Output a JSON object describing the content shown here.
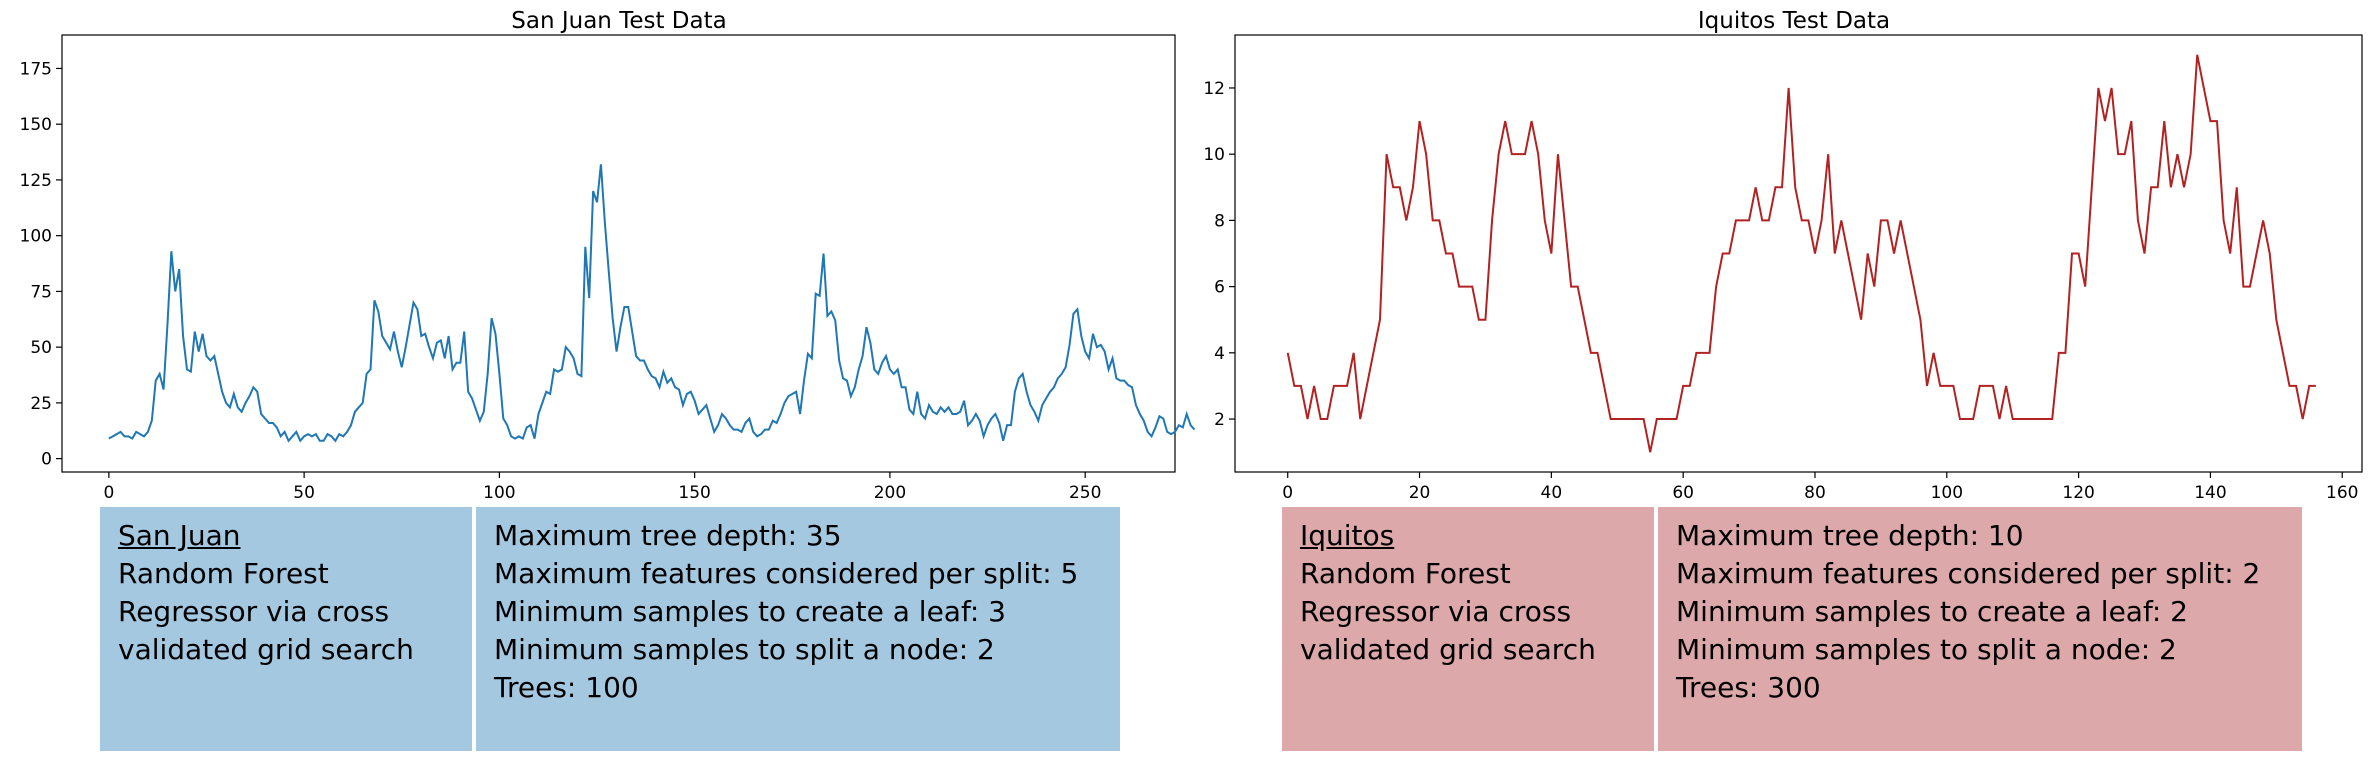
{
  "chart_data": [
    {
      "type": "line",
      "title": "San Juan Test Data",
      "xlabel": "",
      "ylabel": "",
      "xlim": [
        -12,
        273
      ],
      "ylim": [
        -6,
        190
      ],
      "xticks": [
        0,
        50,
        100,
        150,
        200,
        250
      ],
      "yticks": [
        0,
        25,
        50,
        75,
        100,
        125,
        150,
        175
      ],
      "grid": false,
      "color": "#1f77b4",
      "series": [
        {
          "values": [
            9,
            10,
            11,
            12,
            10,
            10,
            9,
            12,
            11,
            10,
            12,
            17,
            35,
            38,
            31,
            60,
            93,
            75,
            85,
            55,
            40,
            39,
            57,
            48,
            56,
            46,
            44,
            46,
            38,
            30,
            25,
            23,
            29,
            23,
            21,
            25,
            28,
            32,
            30,
            20,
            18,
            16,
            16,
            14,
            10,
            12,
            8,
            10,
            12,
            8,
            10,
            11,
            10,
            11,
            8,
            8,
            11,
            10,
            8,
            11,
            10,
            12,
            15,
            21,
            23,
            25,
            38,
            40,
            71,
            66,
            55,
            52,
            49,
            57,
            48,
            41,
            50,
            60,
            70,
            67,
            55,
            56,
            50,
            45,
            52,
            53,
            45,
            55,
            40,
            43,
            43,
            57,
            30,
            27,
            22,
            17,
            21,
            38,
            63,
            56,
            38,
            18,
            15,
            10,
            9,
            10,
            9,
            14,
            15,
            9,
            20,
            25,
            30,
            29,
            40,
            39,
            40,
            50,
            48,
            45,
            38,
            37,
            95,
            72,
            120,
            115,
            132,
            106,
            84,
            63,
            48,
            59,
            68,
            68,
            57,
            46,
            44,
            44,
            40,
            37,
            36,
            32,
            39,
            34,
            36,
            32,
            31,
            24,
            29,
            30,
            26,
            20,
            22,
            24,
            18,
            12,
            15,
            20,
            18,
            15,
            13,
            13,
            12,
            16,
            18,
            12,
            10,
            11,
            13,
            13,
            17,
            16,
            20,
            25,
            28,
            29,
            30,
            20,
            35,
            47,
            45,
            74,
            73,
            92,
            64,
            66,
            62,
            44,
            36,
            35,
            28,
            32,
            40,
            46,
            59,
            52,
            40,
            38,
            43,
            46,
            40,
            38,
            40,
            32,
            32,
            22,
            20,
            30,
            20,
            18,
            24,
            21,
            20,
            23,
            21,
            23,
            20,
            20,
            21,
            26,
            15,
            17,
            20,
            17,
            10,
            15,
            18,
            20,
            16,
            8,
            15,
            15,
            30,
            36,
            38,
            30,
            24,
            21,
            17,
            24,
            27,
            30,
            32,
            36,
            38,
            41,
            51,
            65,
            67,
            55,
            48,
            45,
            56,
            50,
            51,
            48,
            40,
            45,
            36,
            35,
            35,
            33,
            32,
            24,
            20,
            17,
            12,
            10,
            14,
            19,
            18,
            12,
            11,
            12,
            15,
            14,
            20,
            15,
            13
          ]
        }
      ]
    },
    {
      "type": "line",
      "title": "Iquitos Test Data",
      "xlabel": "",
      "ylabel": "",
      "xlim": [
        -8,
        163
      ],
      "ylim": [
        0.4,
        13.6
      ],
      "xticks": [
        0,
        20,
        40,
        60,
        80,
        100,
        120,
        140,
        160
      ],
      "yticks": [
        2,
        4,
        6,
        8,
        10,
        12
      ],
      "grid": false,
      "color": "#b22222",
      "series": [
        {
          "values": [
            4,
            3,
            3,
            2,
            3,
            2,
            2,
            3,
            3,
            3,
            4,
            2,
            3,
            4,
            5,
            10,
            9,
            9,
            8,
            9,
            11,
            10,
            8,
            8,
            7,
            7,
            6,
            6,
            6,
            5,
            5,
            8,
            10,
            11,
            10,
            10,
            10,
            11,
            10,
            8,
            7,
            10,
            8,
            6,
            6,
            5,
            4,
            4,
            3,
            2,
            2,
            2,
            2,
            2,
            2,
            1,
            2,
            2,
            2,
            2,
            3,
            3,
            4,
            4,
            4,
            6,
            7,
            7,
            8,
            8,
            8,
            9,
            8,
            8,
            9,
            9,
            12,
            9,
            8,
            8,
            7,
            8,
            10,
            7,
            8,
            7,
            6,
            5,
            7,
            6,
            8,
            8,
            7,
            8,
            7,
            6,
            5,
            3,
            4,
            3,
            3,
            3,
            2,
            2,
            2,
            3,
            3,
            3,
            2,
            3,
            2,
            2,
            2,
            2,
            2,
            2,
            2,
            4,
            4,
            7,
            7,
            6,
            9,
            12,
            11,
            12,
            10,
            10,
            11,
            8,
            7,
            9,
            9,
            11,
            9,
            10,
            9,
            10,
            13,
            12,
            11,
            11,
            8,
            7,
            9,
            6,
            6,
            7,
            8,
            7,
            5,
            4,
            3,
            3,
            2,
            3,
            3
          ]
        }
      ]
    }
  ],
  "panels": {
    "san_juan": {
      "name": "San Juan",
      "description": "Random Forest Regressor via cross validated grid search",
      "params": [
        "Maximum tree depth: 35",
        "Maximum features considered per split: 5",
        "Minimum samples to create a leaf: 3",
        "Minimum samples to split a node: 2",
        "Trees: 100"
      ],
      "color": "#a5c8e1"
    },
    "iquitos": {
      "name": "Iquitos",
      "description": "Random Forest Regressor via cross validated grid search",
      "params": [
        "Maximum tree depth: 10",
        "Maximum features considered per split: 2",
        "Minimum samples to create a leaf: 2",
        "Minimum samples to split a node: 2",
        "Trees: 300"
      ],
      "color": "#dca8a9"
    }
  }
}
